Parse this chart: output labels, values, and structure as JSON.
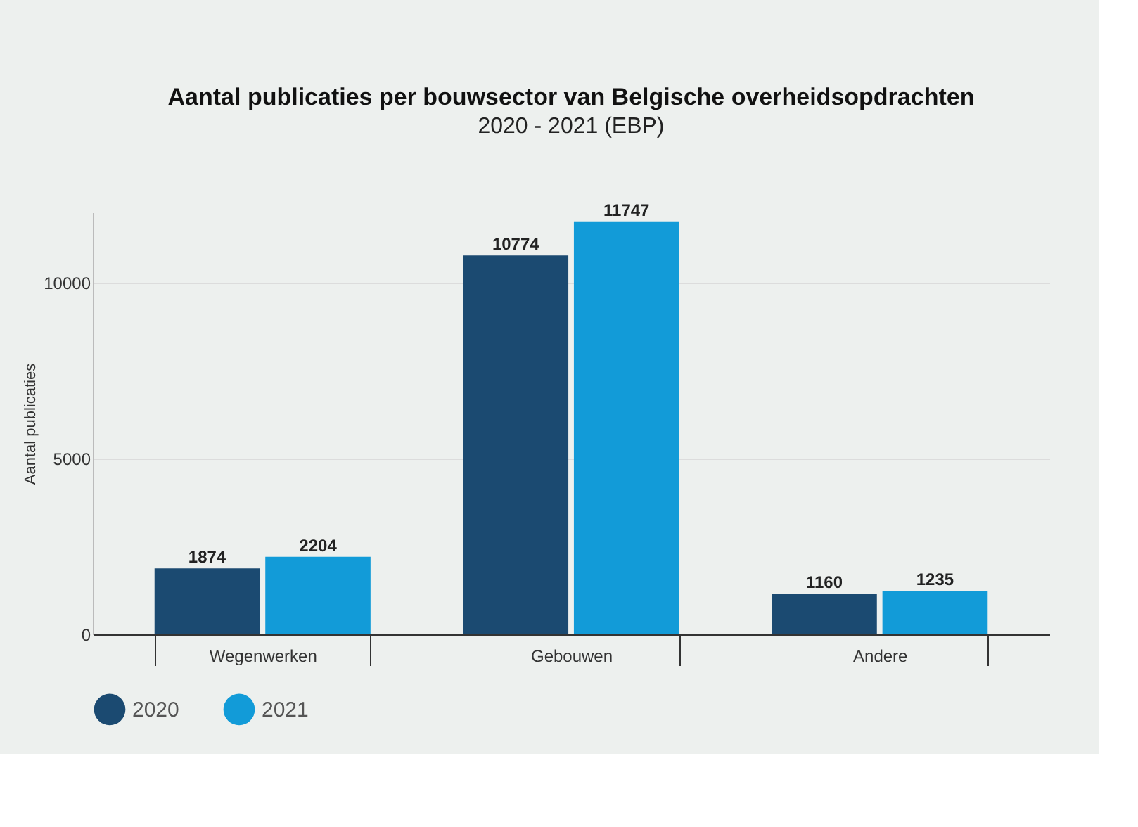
{
  "chart_data": {
    "type": "bar",
    "title": "Aantal publicaties per bouwsector van Belgische overheidsopdrachten",
    "subtitle": "2020 - 2021 (EBP)",
    "ylabel": "Aantal publicaties",
    "categories": [
      "Wegenwerken",
      "Gebouwen",
      "Andere"
    ],
    "series": [
      {
        "name": "2020",
        "color": "#1b4a71",
        "values": [
          1874,
          10774,
          1160
        ]
      },
      {
        "name": "2021",
        "color": "#129bd8",
        "values": [
          2204,
          11747,
          1235
        ]
      }
    ],
    "ylim": [
      0,
      12000
    ],
    "yticks": [
      0,
      5000,
      10000
    ],
    "grid": "y",
    "legend": "bottom",
    "data_labels": true
  }
}
